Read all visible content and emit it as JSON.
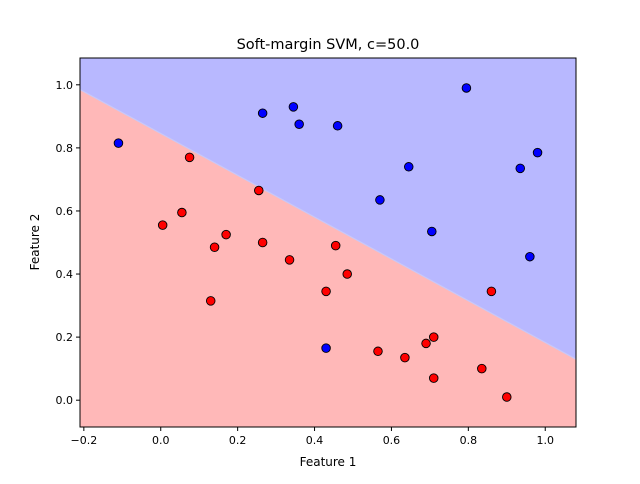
{
  "chart_data": {
    "type": "scatter",
    "title": "Soft-margin SVM, c=50.0",
    "xlabel": "Feature 1",
    "ylabel": "Feature 2",
    "xlim": [
      -0.21,
      1.08
    ],
    "ylim": [
      -0.085,
      1.085
    ],
    "xticks": [
      -0.2,
      0.0,
      0.2,
      0.4,
      0.6,
      0.8,
      1.0
    ],
    "yticks": [
      0.0,
      0.2,
      0.4,
      0.6,
      0.8,
      1.0
    ],
    "xtick_labels": [
      "−0.2",
      "0.0",
      "0.2",
      "0.4",
      "0.6",
      "0.8",
      "1.0"
    ],
    "ytick_labels": [
      "0.0",
      "0.2",
      "0.4",
      "0.6",
      "0.8",
      "1.0"
    ],
    "grid": false,
    "decision_boundary": {
      "x": [
        -0.21,
        1.08
      ],
      "y": [
        0.985,
        0.13
      ],
      "upper_region_color": "#b8b8ff",
      "lower_region_color": "#ffb8b8"
    },
    "series": [
      {
        "color": "#0000ff",
        "points": [
          [
            -0.11,
            0.815
          ],
          [
            0.265,
            0.91
          ],
          [
            0.345,
            0.93
          ],
          [
            0.36,
            0.875
          ],
          [
            0.46,
            0.87
          ],
          [
            0.795,
            0.99
          ],
          [
            0.645,
            0.74
          ],
          [
            0.57,
            0.635
          ],
          [
            0.705,
            0.535
          ],
          [
            0.935,
            0.735
          ],
          [
            0.98,
            0.785
          ],
          [
            0.96,
            0.455
          ],
          [
            0.43,
            0.165
          ]
        ]
      },
      {
        "color": "#ff0000",
        "points": [
          [
            0.075,
            0.77
          ],
          [
            0.005,
            0.555
          ],
          [
            0.055,
            0.595
          ],
          [
            0.14,
            0.485
          ],
          [
            0.17,
            0.525
          ],
          [
            0.255,
            0.665
          ],
          [
            0.265,
            0.5
          ],
          [
            0.335,
            0.445
          ],
          [
            0.455,
            0.49
          ],
          [
            0.485,
            0.4
          ],
          [
            0.43,
            0.345
          ],
          [
            0.13,
            0.315
          ],
          [
            0.86,
            0.345
          ],
          [
            0.71,
            0.2
          ],
          [
            0.69,
            0.18
          ],
          [
            0.635,
            0.135
          ],
          [
            0.565,
            0.155
          ],
          [
            0.71,
            0.07
          ],
          [
            0.835,
            0.1
          ],
          [
            0.9,
            0.01
          ]
        ]
      }
    ]
  }
}
